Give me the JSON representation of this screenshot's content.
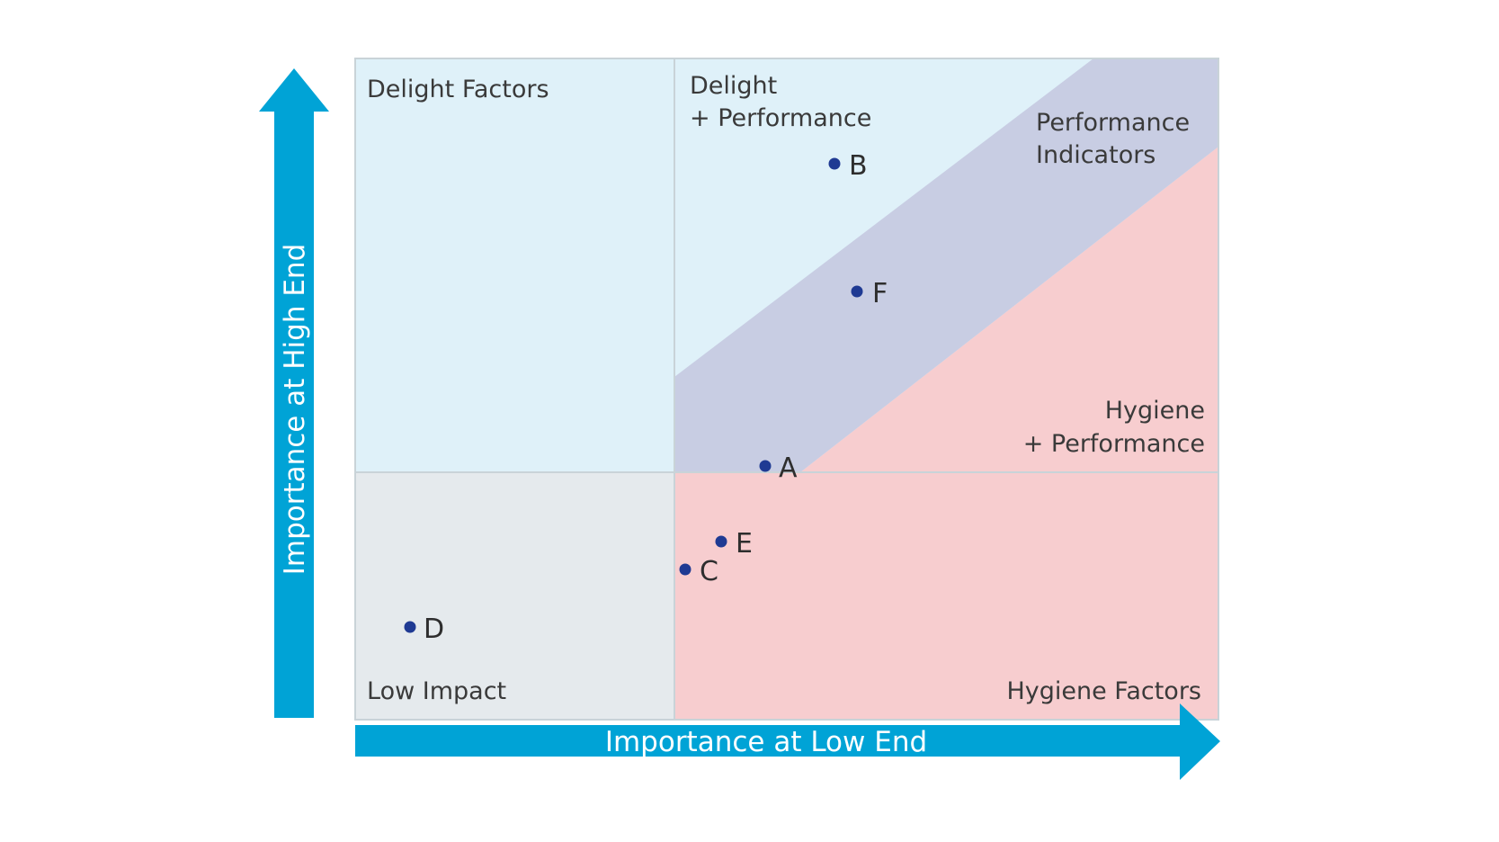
{
  "axes": {
    "x_label": "Importance at Low End",
    "y_label": "Importance at High End",
    "arrow_color": "#00a3d6"
  },
  "regions": {
    "delight_factors": {
      "label": "Delight Factors",
      "color": "#dff1f9"
    },
    "delight_performance": {
      "line1": "Delight",
      "line2": "+ Performance",
      "color": "#dff1f9"
    },
    "performance_indicators": {
      "line1": "Performance",
      "line2": "Indicators",
      "color": "#c8cde3"
    },
    "hygiene_performance": {
      "line1": "Hygiene",
      "line2": "+ Performance",
      "color": "#f7cdcf"
    },
    "low_impact": {
      "label": "Low Impact",
      "color": "#e5eaed"
    },
    "hygiene_factors": {
      "label": "Hygiene Factors",
      "color": "#f7cdcf"
    }
  },
  "points": [
    {
      "label": "A"
    },
    {
      "label": "B"
    },
    {
      "label": "C"
    },
    {
      "label": "D"
    },
    {
      "label": "E"
    },
    {
      "label": "F"
    }
  ],
  "point_color": "#1f3a93",
  "grid_line_color": "#c9d3d8"
}
